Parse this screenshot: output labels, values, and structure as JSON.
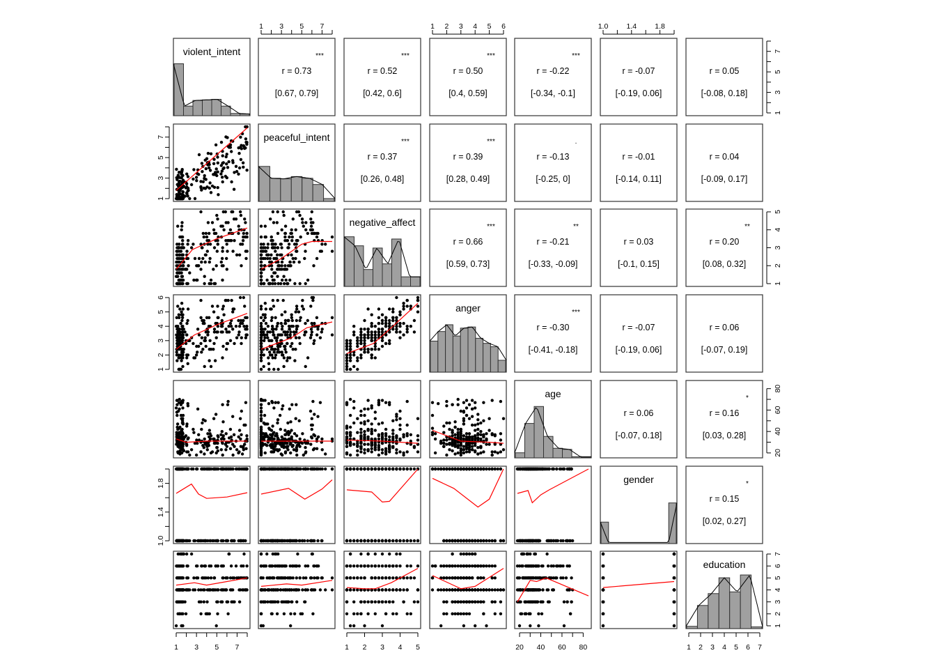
{
  "chart_data": {
    "type": "scatter",
    "title": "",
    "variables": [
      "violent_intent",
      "peaceful_intent",
      "negative_affect",
      "anger",
      "age",
      "gender",
      "education"
    ],
    "colors": {
      "points": "#000000",
      "smoother": "#ff0000",
      "stars": "#d6274a",
      "hist_fill": "#a0a0a0",
      "box": "#333333"
    },
    "axes": {
      "violent_intent": {
        "range": [
          1,
          8
        ],
        "ticks": [
          1,
          3,
          5,
          7
        ],
        "minor": [
          2,
          4,
          6,
          8
        ]
      },
      "peaceful_intent": {
        "range": [
          1,
          8
        ],
        "ticks": [
          1,
          3,
          5,
          7
        ],
        "minor": [
          2,
          4,
          6,
          8
        ]
      },
      "negative_affect": {
        "range": [
          1,
          5
        ],
        "ticks": [
          1,
          2,
          3,
          4,
          5
        ],
        "minor": []
      },
      "anger": {
        "range": [
          1,
          6
        ],
        "ticks": [
          1,
          2,
          3,
          4,
          5,
          6
        ],
        "minor": []
      },
      "age": {
        "range": [
          18,
          85
        ],
        "ticks": [
          20,
          40,
          60,
          80
        ],
        "minor": [
          30,
          50,
          70
        ]
      },
      "gender": {
        "range": [
          1,
          2
        ],
        "ticks": [
          1.0,
          1.4,
          1.8
        ],
        "minor": [
          1.2,
          1.6,
          2.0
        ]
      },
      "education": {
        "range": [
          1,
          7
        ],
        "ticks": [
          1,
          2,
          3,
          4,
          5,
          6,
          7
        ],
        "minor": []
      }
    },
    "tick_labels": {
      "top": [
        {
          "col": 1,
          "var": "peaceful_intent",
          "labels": [
            "1",
            "3",
            "5",
            "7"
          ]
        },
        {
          "col": 3,
          "var": "anger",
          "labels": [
            "1",
            "2",
            "3",
            "4",
            "5",
            "6"
          ]
        },
        {
          "col": 5,
          "var": "gender",
          "labels": [
            "1.0",
            "1.4",
            "1.8"
          ]
        }
      ],
      "bottom": [
        {
          "col": 0,
          "var": "violent_intent",
          "labels": [
            "1",
            "3",
            "5",
            "7"
          ]
        },
        {
          "col": 2,
          "var": "negative_affect",
          "labels": [
            "1",
            "2",
            "3",
            "4",
            "5"
          ]
        },
        {
          "col": 4,
          "var": "age",
          "labels": [
            "20",
            "40",
            "60",
            "80"
          ]
        },
        {
          "col": 6,
          "var": "education",
          "labels": [
            "1",
            "2",
            "3",
            "4",
            "5",
            "6",
            "7"
          ]
        }
      ],
      "left": [
        {
          "row": 1,
          "var": "peaceful_intent",
          "labels": [
            "1",
            "3",
            "5",
            "7"
          ]
        },
        {
          "row": 3,
          "var": "anger",
          "labels": [
            "1",
            "2",
            "3",
            "4",
            "5",
            "6"
          ]
        },
        {
          "row": 5,
          "var": "gender",
          "labels": [
            "1.0",
            "1.4",
            "1.8"
          ]
        }
      ],
      "right": [
        {
          "row": 0,
          "var": "violent_intent",
          "labels": [
            "1",
            "3",
            "5",
            "7"
          ]
        },
        {
          "row": 2,
          "var": "negative_affect",
          "labels": [
            "1",
            "2",
            "3",
            "4",
            "5"
          ]
        },
        {
          "row": 4,
          "var": "age",
          "labels": [
            "20",
            "40",
            "60",
            "80"
          ]
        },
        {
          "row": 6,
          "var": "education",
          "labels": [
            "1",
            "2",
            "3",
            "4",
            "5",
            "6",
            "7"
          ]
        }
      ]
    },
    "histograms": {
      "violent_intent": [
        0.92,
        0.17,
        0.27,
        0.28,
        0.29,
        0.17,
        0.04,
        0.03
      ],
      "peaceful_intent": [
        0.62,
        0.41,
        0.4,
        0.44,
        0.41,
        0.3,
        0.05
      ],
      "negative_affect": [
        0.88,
        0.72,
        0.3,
        0.68,
        0.4,
        0.84,
        0.17,
        0.17
      ],
      "anger": [
        0.55,
        0.72,
        0.84,
        0.64,
        0.78,
        0.8,
        0.6,
        0.51,
        0.45,
        0.21
      ],
      "age": [
        0.09,
        0.61,
        0.91,
        0.38,
        0.17,
        0.15,
        0.02,
        0.01
      ],
      "gender": [
        0.38,
        0.0,
        0.0,
        0.0,
        0.0,
        0.0,
        0.0,
        0.0,
        0.0,
        0.72
      ],
      "education": [
        0.04,
        0.41,
        0.62,
        0.9,
        0.65,
        0.95,
        0.03
      ]
    },
    "correlations": [
      {
        "row": 0,
        "col": 1,
        "r": "r  = 0.73",
        "ci": "[0.67, 0.79]",
        "stars": "***"
      },
      {
        "row": 0,
        "col": 2,
        "r": "r  = 0.52",
        "ci": "[0.42, 0.6]",
        "stars": "***"
      },
      {
        "row": 0,
        "col": 3,
        "r": "r  = 0.50",
        "ci": "[0.4, 0.59]",
        "stars": "***"
      },
      {
        "row": 0,
        "col": 4,
        "r": "r  = -0.22",
        "ci": "[-0.34, -0.1]",
        "stars": "***"
      },
      {
        "row": 0,
        "col": 5,
        "r": "r  = -0.07",
        "ci": "[-0.19, 0.06]",
        "stars": ""
      },
      {
        "row": 0,
        "col": 6,
        "r": "r  = 0.05",
        "ci": "[-0.08, 0.18]",
        "stars": ""
      },
      {
        "row": 1,
        "col": 2,
        "r": "r  = 0.37",
        "ci": "[0.26, 0.48]",
        "stars": "***"
      },
      {
        "row": 1,
        "col": 3,
        "r": "r  = 0.39",
        "ci": "[0.28, 0.49]",
        "stars": "***"
      },
      {
        "row": 1,
        "col": 4,
        "r": "r  = -0.13",
        "ci": "[-0.25, 0]",
        "stars": "."
      },
      {
        "row": 1,
        "col": 5,
        "r": "r  = -0.01",
        "ci": "[-0.14, 0.11]",
        "stars": ""
      },
      {
        "row": 1,
        "col": 6,
        "r": "r  = 0.04",
        "ci": "[-0.09, 0.17]",
        "stars": ""
      },
      {
        "row": 2,
        "col": 3,
        "r": "r  = 0.66",
        "ci": "[0.59, 0.73]",
        "stars": "***"
      },
      {
        "row": 2,
        "col": 4,
        "r": "r  = -0.21",
        "ci": "[-0.33, -0.09]",
        "stars": "**"
      },
      {
        "row": 2,
        "col": 5,
        "r": "r  = 0.03",
        "ci": "[-0.1, 0.15]",
        "stars": ""
      },
      {
        "row": 2,
        "col": 6,
        "r": "r  = 0.20",
        "ci": "[0.08, 0.32]",
        "stars": "**"
      },
      {
        "row": 3,
        "col": 4,
        "r": "r  = -0.30",
        "ci": "[-0.41, -0.18]",
        "stars": "***"
      },
      {
        "row": 3,
        "col": 5,
        "r": "r  = -0.07",
        "ci": "[-0.19, 0.06]",
        "stars": ""
      },
      {
        "row": 3,
        "col": 6,
        "r": "r  = 0.06",
        "ci": "[-0.07, 0.19]",
        "stars": ""
      },
      {
        "row": 4,
        "col": 5,
        "r": "r  = 0.06",
        "ci": "[-0.07, 0.18]",
        "stars": ""
      },
      {
        "row": 4,
        "col": 6,
        "r": "r  = 0.16",
        "ci": "[0.03, 0.28]",
        "stars": "*"
      },
      {
        "row": 5,
        "col": 6,
        "r": "r  = 0.15",
        "ci": "[0.02, 0.27]",
        "stars": "*"
      }
    ],
    "loess": {
      "1-0": [
        [
          1,
          1.8
        ],
        [
          8,
          7.9
        ]
      ],
      "2-0": [
        [
          1,
          1.8
        ],
        [
          2.6,
          2.9
        ],
        [
          5,
          3.5
        ],
        [
          8,
          4.1
        ]
      ],
      "2-1": [
        [
          1,
          1.8
        ],
        [
          3,
          2.4
        ],
        [
          5,
          3.2
        ],
        [
          6,
          3.35
        ],
        [
          8,
          3.35
        ]
      ],
      "3-0": [
        [
          1,
          2.4
        ],
        [
          2.8,
          3.4
        ],
        [
          5,
          4.1
        ],
        [
          8,
          4.9
        ]
      ],
      "3-1": [
        [
          1,
          2.4
        ],
        [
          4,
          3.2
        ],
        [
          5.5,
          3.9
        ],
        [
          8,
          4.3
        ]
      ],
      "3-2": [
        [
          1,
          2.1
        ],
        [
          2.5,
          2.8
        ],
        [
          3.5,
          3.9
        ],
        [
          5,
          5.6
        ]
      ],
      "4-0": [
        [
          1,
          33
        ],
        [
          2,
          30
        ],
        [
          4,
          31
        ],
        [
          8,
          31
        ]
      ],
      "4-1": [
        [
          1,
          31
        ],
        [
          5,
          31
        ],
        [
          8,
          31
        ]
      ],
      "4-2": [
        [
          1,
          32
        ],
        [
          3,
          31
        ],
        [
          5,
          29
        ]
      ],
      "4-3": [
        [
          1,
          41
        ],
        [
          3,
          31
        ],
        [
          5,
          30
        ],
        [
          6,
          29
        ]
      ],
      "5-0": [
        [
          1,
          1.66
        ],
        [
          2.5,
          1.79
        ],
        [
          3.2,
          1.65
        ],
        [
          4,
          1.59
        ],
        [
          6,
          1.61
        ],
        [
          8,
          1.67
        ]
      ],
      "5-1": [
        [
          1,
          1.65
        ],
        [
          3.7,
          1.73
        ],
        [
          5.3,
          1.58
        ],
        [
          7,
          1.72
        ],
        [
          8,
          1.85
        ]
      ],
      "5-2": [
        [
          1,
          1.71
        ],
        [
          2.4,
          1.68
        ],
        [
          3.0,
          1.54
        ],
        [
          3.4,
          1.55
        ],
        [
          5,
          2.0
        ]
      ],
      "5-3": [
        [
          1,
          1.87
        ],
        [
          2.5,
          1.73
        ],
        [
          4.2,
          1.47
        ],
        [
          5,
          1.58
        ],
        [
          6,
          2.0
        ]
      ],
      "5-4": [
        [
          18,
          1.66
        ],
        [
          28,
          1.7
        ],
        [
          32,
          1.53
        ],
        [
          40,
          1.64
        ],
        [
          48,
          1.71
        ],
        [
          85,
          2.0
        ]
      ],
      "6-0": [
        [
          1,
          4.4
        ],
        [
          2.8,
          4.6
        ],
        [
          4,
          4.4
        ],
        [
          6,
          4.7
        ],
        [
          8,
          5.0
        ]
      ],
      "6-1": [
        [
          1,
          4.3
        ],
        [
          3.5,
          4.5
        ],
        [
          5,
          4.4
        ],
        [
          8,
          4.8
        ]
      ],
      "6-2": [
        [
          1,
          4.2
        ],
        [
          2,
          4.1
        ],
        [
          2.6,
          4.1
        ],
        [
          3.5,
          4.6
        ],
        [
          5,
          5.8
        ]
      ],
      "6-3": [
        [
          1,
          5.2
        ],
        [
          3,
          4.1
        ],
        [
          4,
          4.3
        ],
        [
          6,
          5.8
        ]
      ],
      "6-4": [
        [
          18,
          3.0
        ],
        [
          30,
          4.8
        ],
        [
          36,
          4.7
        ],
        [
          45,
          5.0
        ],
        [
          85,
          3.5
        ]
      ],
      "6-5": [
        [
          1,
          4.2
        ],
        [
          2,
          4.7
        ]
      ]
    }
  }
}
